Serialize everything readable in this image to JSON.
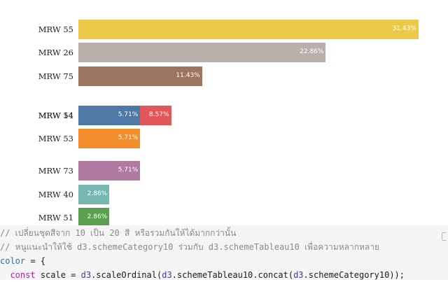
{
  "chart_data": {
    "type": "bar",
    "orientation": "horizontal",
    "unit": "%",
    "bars": [
      {
        "label": "MRW 55",
        "value": 31.43,
        "value_label": "31.43%",
        "color": "#edc949",
        "row": 0
      },
      {
        "label": "MRW 26",
        "value": 22.86,
        "value_label": "22.86%",
        "color": "#bab0ab",
        "row": 1
      },
      {
        "label": "MRW 75",
        "value": 11.43,
        "value_label": "11.43%",
        "color": "#9c755f",
        "row": 2
      },
      {
        "label": "MRW 54",
        "value": 8.57,
        "value_label": "8.57%",
        "color": "#e15759",
        "row": 3
      },
      {
        "label": "MRW 14",
        "value": 5.71,
        "value_label": "5.71%",
        "color": "#4e79a7",
        "row": 3
      },
      {
        "label": "MRW 53",
        "value": 5.71,
        "value_label": "5.71%",
        "color": "#f28e2c",
        "row": 4
      },
      {
        "label": "MRW 73",
        "value": 5.71,
        "value_label": "5.71%",
        "color": "#b07aa1",
        "row": 5
      },
      {
        "label": "MRW 40",
        "value": 2.86,
        "value_label": "2.86%",
        "color": "#76b7b2",
        "row": 6
      },
      {
        "label": "MRW 51",
        "value": 2.86,
        "value_label": "2.86%",
        "color": "#59a14f",
        "row": 7
      }
    ]
  },
  "code": {
    "lines": [
      [
        {
          "t": "// เปลี่ยนชุดสีจาก 10 เป็น 20 สี หรือรวมกันให้ได้มากกว่านั้น",
          "c": "cm-comment"
        }
      ],
      [
        {
          "t": "// หนูแนะนำให้ใช้ d3.schemeCategory10 ร่วมกับ d3.schemeTableau10 เพื่อความหลากหลาย",
          "c": "cm-comment"
        }
      ],
      [
        {
          "t": "color",
          "c": "cm-def"
        },
        {
          "t": " = {",
          "c": "cm-plain"
        }
      ],
      [
        {
          "t": "  ",
          "c": "cm-plain"
        },
        {
          "t": "const",
          "c": "cm-kw"
        },
        {
          "t": " scale = ",
          "c": "cm-plain"
        },
        {
          "t": "d3",
          "c": "cm-var"
        },
        {
          "t": ".scaleOrdinal(",
          "c": "cm-plain"
        },
        {
          "t": "d3",
          "c": "cm-var"
        },
        {
          "t": ".schemeTableau10.concat(",
          "c": "cm-plain"
        },
        {
          "t": "d3",
          "c": "cm-var"
        },
        {
          "t": ".schemeCategory10));",
          "c": "cm-plain"
        }
      ]
    ]
  }
}
